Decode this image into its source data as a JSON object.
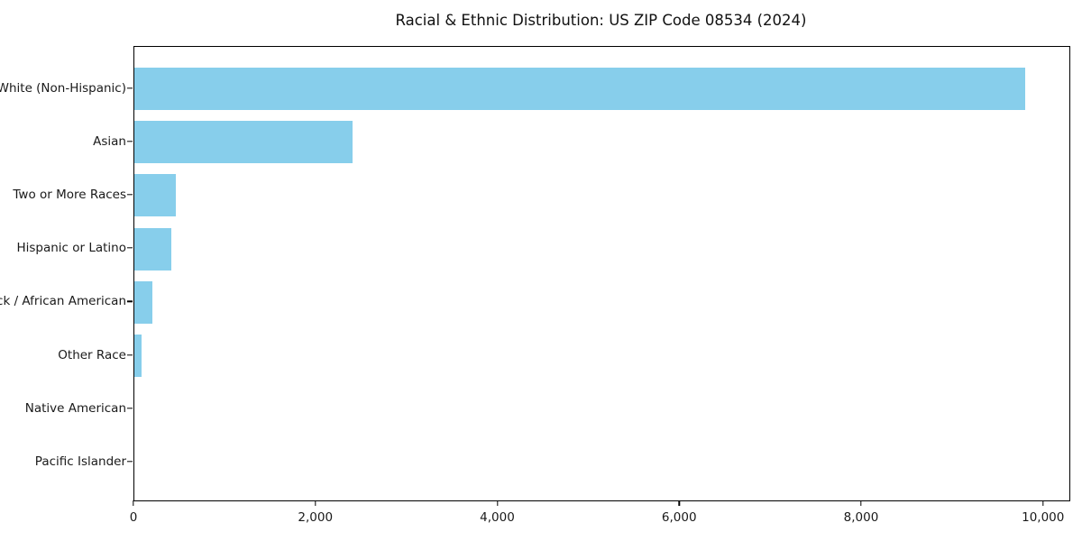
{
  "chart_data": {
    "type": "bar",
    "orientation": "horizontal",
    "title": "Racial & Ethnic Distribution: US ZIP Code 08534 (2024)",
    "categories": [
      "White (Non-Hispanic)",
      "Asian",
      "Two or More Races",
      "Hispanic or Latino",
      "Black / African American",
      "Other Race",
      "Native American",
      "Pacific Islander"
    ],
    "values": [
      9790,
      2400,
      455,
      405,
      200,
      80,
      0,
      0
    ],
    "xlabel": "",
    "ylabel": "",
    "xlim": [
      0,
      10280
    ],
    "xticks": [
      0,
      2000,
      4000,
      6000,
      8000,
      10000
    ],
    "xtick_labels": [
      "0",
      "2,000",
      "4,000",
      "6,000",
      "8,000",
      "10,000"
    ],
    "bar_color": "#87CEEB",
    "axis_color": "#000000",
    "text_color": "#1a1a1a",
    "background_color": "#ffffff",
    "grid": false,
    "legend_position": "none"
  }
}
